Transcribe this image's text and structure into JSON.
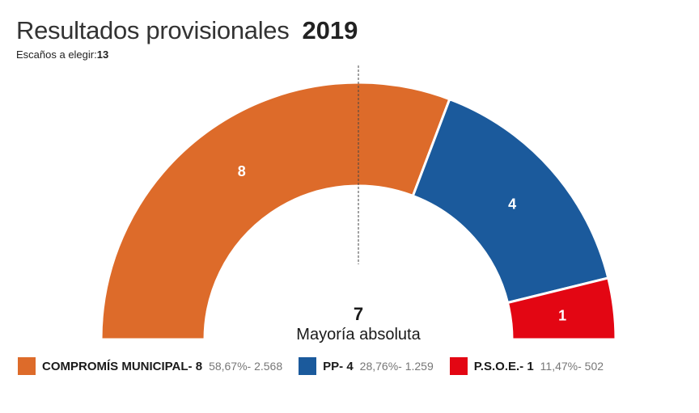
{
  "header": {
    "title": "Resultados provisionales",
    "year": "2019",
    "seats_label": "Escaños a elegir:",
    "seats_total": "13"
  },
  "chart_data": {
    "type": "pie",
    "subtype": "semicircle-parliament",
    "total_seats": 13,
    "majority_value": "7",
    "majority_label": "Mayoría absoluta",
    "series": [
      {
        "name": "COMPROMÍS MUNICIPAL",
        "seats": 8,
        "percent": "58,67%",
        "votes": "2.568",
        "color": "#dd6b2a"
      },
      {
        "name": "PP",
        "seats": 4,
        "percent": "28,76%",
        "votes": "1.259",
        "color": "#1b5a9c"
      },
      {
        "name": "P.S.O.E.",
        "seats": 1,
        "percent": "11,47%",
        "votes": "502",
        "color": "#e30613"
      }
    ]
  },
  "legend": [
    {
      "label": "COMPROMÍS MUNICIPAL- 8",
      "detail": "58,67%- 2.568",
      "color": "#dd6b2a"
    },
    {
      "label": "PP- 4",
      "detail": "28,76%- 1.259",
      "color": "#1b5a9c"
    },
    {
      "label": "P.S.O.E.- 1",
      "detail": "11,47%- 502",
      "color": "#e30613"
    }
  ]
}
